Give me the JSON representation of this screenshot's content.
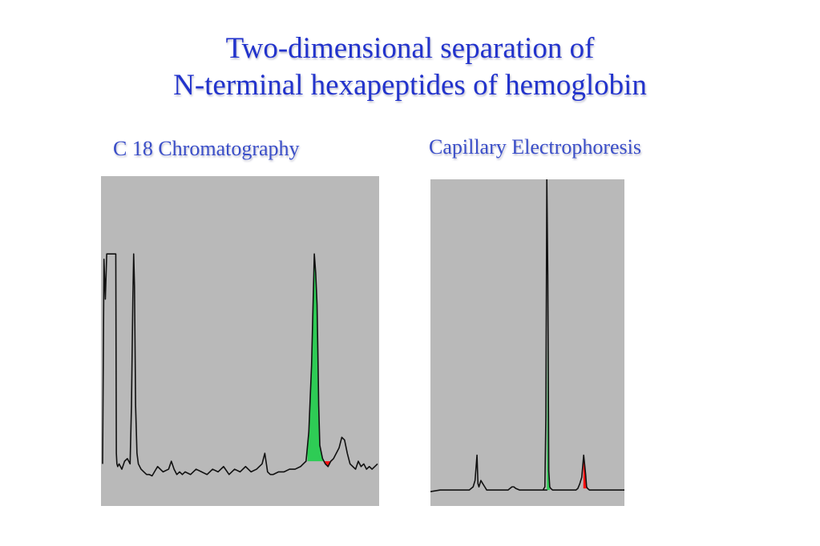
{
  "slide": {
    "title_line1": "Two-dimensional separation of",
    "title_line2": "N-terminal hexapeptides of hemoglobin",
    "title_color": "#2233cc",
    "subtitle_color": "#3a4ec8"
  },
  "chart_data": [
    {
      "type": "line",
      "title": "C 18 Chromatography",
      "background": "#b9b9b9",
      "xlabel": "",
      "ylabel": "",
      "xlim": [
        0,
        100
      ],
      "ylim": [
        0,
        100
      ],
      "grid": false,
      "series": [
        {
          "line_color": "#111111",
          "x": [
            0,
            0.5,
            1,
            1.5,
            2,
            3,
            4,
            4.5,
            4.8,
            5,
            5.2,
            5.5,
            6,
            7,
            8,
            9,
            10,
            10.5,
            11,
            11.3,
            11.6,
            12,
            12.5,
            13,
            14,
            15,
            16,
            17,
            18,
            20,
            22,
            24,
            25,
            26,
            27,
            28,
            29,
            30,
            32,
            34,
            36,
            38,
            40,
            42,
            44,
            46,
            48,
            50,
            52,
            54,
            56,
            58,
            59,
            60,
            61,
            62,
            64,
            66,
            68,
            70,
            72,
            74,
            75,
            76,
            77,
            77.5,
            78,
            78.3,
            78.6,
            79,
            80,
            81,
            82,
            83,
            84,
            85,
            86,
            87,
            88,
            89,
            90,
            91,
            92,
            93,
            94,
            95,
            96,
            97,
            98,
            100
          ],
          "y": [
            8,
            85,
            70,
            87,
            87,
            87,
            87,
            87,
            87,
            12,
            8,
            7,
            8,
            6,
            9,
            10,
            8,
            30,
            70,
            87,
            75,
            30,
            12,
            8,
            6,
            5,
            4,
            4,
            3.5,
            7,
            5,
            6,
            9,
            6,
            4,
            5,
            4,
            5,
            4,
            6,
            5,
            4,
            6,
            5,
            7,
            4,
            6,
            5,
            7,
            5,
            6,
            8,
            12,
            5,
            4,
            4,
            5,
            5,
            6,
            6,
            7,
            9,
            20,
            45,
            87,
            80,
            68,
            50,
            30,
            15,
            10,
            8,
            7,
            9,
            10,
            12,
            14,
            18,
            17,
            12,
            8,
            7,
            6,
            9,
            7,
            8,
            6,
            7,
            6,
            8
          ]
        }
      ],
      "highlight_peaks": [
        {
          "color": "#2ecc55",
          "from_x": 74.5,
          "to_x": 80.5
        },
        {
          "color": "#ff1010",
          "from_x": 80.5,
          "to_x": 83.5
        }
      ]
    },
    {
      "type": "line",
      "title": "Capillary Electrophoresis",
      "background": "#b9b9b9",
      "xlabel": "",
      "ylabel": "",
      "xlim": [
        0,
        100
      ],
      "ylim": [
        0,
        100
      ],
      "grid": false,
      "series": [
        {
          "line_color": "#111111",
          "x": [
            0,
            5,
            10,
            15,
            20,
            22,
            23,
            24,
            24.5,
            25,
            26,
            27,
            28,
            28.5,
            29,
            30,
            32,
            35,
            40,
            42,
            43,
            44,
            46,
            50,
            55,
            60,
            57,
            58,
            59,
            59.5,
            60,
            60.5,
            61,
            61.5,
            62,
            63,
            65,
            70,
            75,
            76,
            77,
            78,
            79,
            79.5,
            80,
            80.5,
            81,
            82,
            83,
            85,
            90,
            95,
            100
          ],
          "y": [
            1.5,
            2,
            2,
            2,
            2,
            3,
            5,
            13,
            4,
            3,
            5,
            4,
            3,
            2.5,
            2,
            2,
            2,
            2,
            2,
            3,
            3,
            2.5,
            2,
            2,
            2,
            2,
            2,
            2,
            3,
            25,
            100,
            70,
            8,
            3,
            2.5,
            2,
            2,
            2,
            2,
            2.5,
            4,
            6,
            13,
            10,
            7,
            3,
            2.5,
            2,
            2,
            2,
            2,
            2,
            2
          ]
        }
      ],
      "highlight_peaks": [
        {
          "color": "#2ecc55",
          "from_x": 59.3,
          "to_x": 61.5
        },
        {
          "color": "#ff1010",
          "from_x": 78.8,
          "to_x": 81
        }
      ]
    }
  ]
}
